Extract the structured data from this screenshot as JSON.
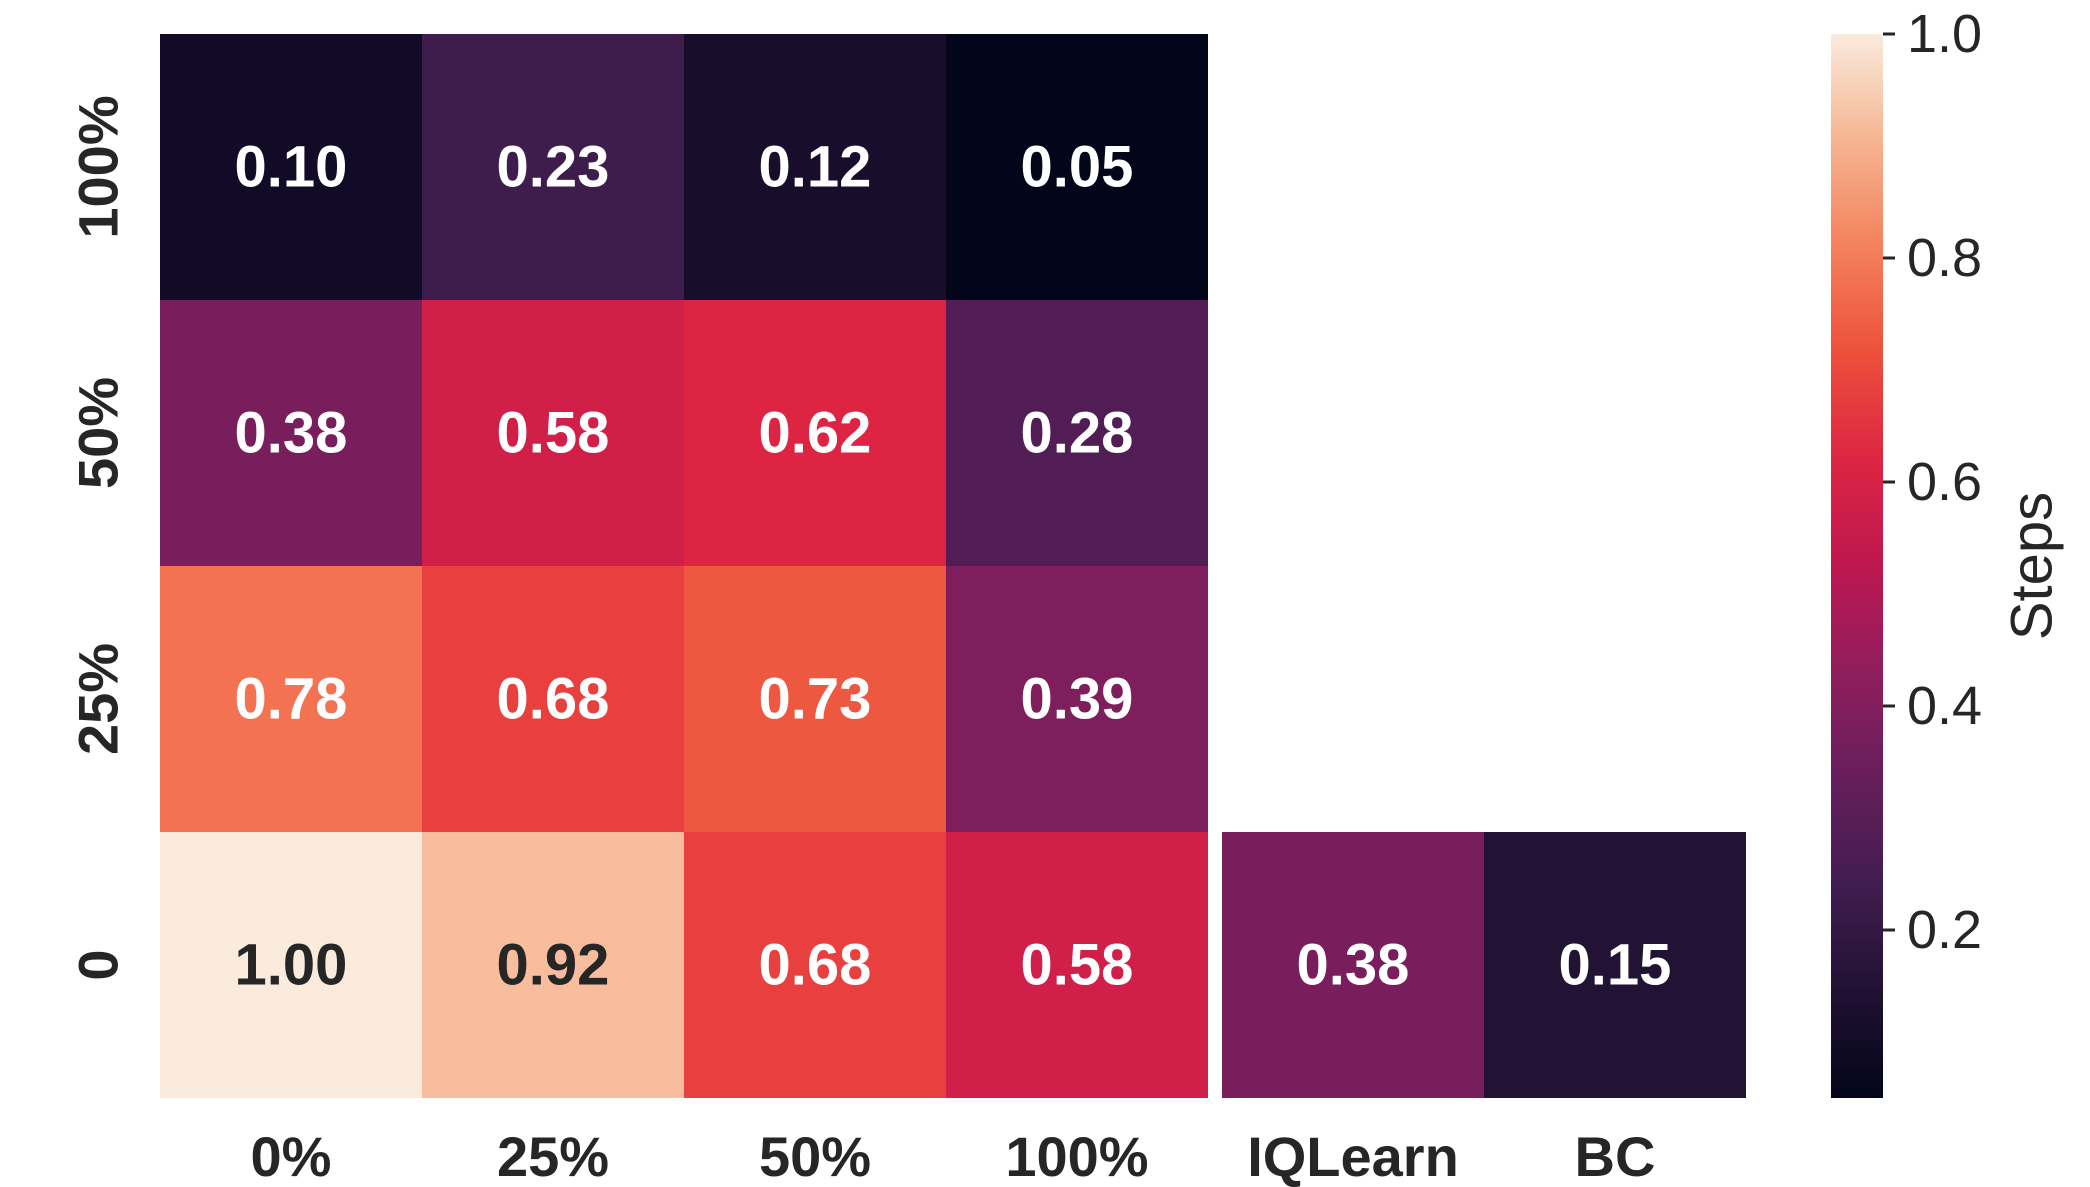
{
  "chart_data": {
    "type": "heatmap",
    "x_categories": [
      "0%",
      "25%",
      "50%",
      "100%",
      "IQLearn",
      "BC"
    ],
    "y_categories": [
      "100%",
      "50%",
      "25%",
      "0"
    ],
    "rows": [
      {
        "y": "100%",
        "values": [
          0.1,
          0.23,
          0.12,
          0.05,
          null,
          null
        ]
      },
      {
        "y": "50%",
        "values": [
          0.38,
          0.58,
          0.62,
          0.28,
          null,
          null
        ]
      },
      {
        "y": "25%",
        "values": [
          0.78,
          0.68,
          0.73,
          0.39,
          null,
          null
        ]
      },
      {
        "y": "0",
        "values": [
          1.0,
          0.92,
          0.68,
          0.58,
          0.38,
          0.15
        ]
      }
    ],
    "colorbar": {
      "label": "Steps",
      "colormap": "rocket",
      "range": [
        0.05,
        1.0
      ],
      "ticks": [
        0.2,
        0.4,
        0.6,
        0.8,
        1.0
      ],
      "tick_labels": [
        "0.2",
        "0.4",
        "0.6",
        "0.8",
        "1.0"
      ]
    },
    "value_format": "2 decimals",
    "label_colors": {
      "light": "#ffffff",
      "dark": "#262626"
    }
  }
}
